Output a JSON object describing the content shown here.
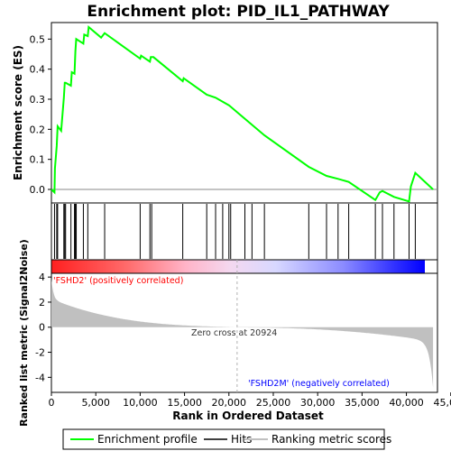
{
  "chart_data": {
    "type": "line",
    "title": "Enrichment plot: PID_IL1_PATHWAY",
    "xlabel": "Rank in Ordered Dataset",
    "xlim": [
      0,
      43500
    ],
    "x_ticks": [
      0,
      5000,
      10000,
      15000,
      20000,
      25000,
      30000,
      35000,
      40000,
      45000
    ],
    "x_tick_labels": [
      "0",
      "5,000",
      "10,000",
      "15,000",
      "20,000",
      "25,000",
      "30,000",
      "35,000",
      "40,000",
      "45,000"
    ],
    "es_panel": {
      "ylabel": "Enrichment score (ES)",
      "ylim": [
        -0.045,
        0.555
      ],
      "y_ticks": [
        0.0,
        0.1,
        0.2,
        0.3,
        0.4,
        0.5
      ],
      "y_tick_labels": [
        "0.0",
        "0.1",
        "0.2",
        "0.3",
        "0.4",
        "0.5"
      ],
      "series": [
        {
          "name": "Enrichment profile",
          "color": "#00ff00",
          "x": [
            0,
            350,
            400,
            600,
            700,
            1100,
            1400,
            1500,
            1600,
            2200,
            2300,
            2600,
            2700,
            2800,
            3600,
            3700,
            4100,
            4200,
            5600,
            6000,
            10000,
            10100,
            11100,
            11200,
            11300,
            11500,
            14800,
            14900,
            17500,
            18500,
            20000,
            24000,
            29000,
            31000,
            32300,
            33500,
            36500,
            37000,
            37300,
            38600,
            40300,
            40500,
            41000,
            43000
          ],
          "y": [
            0.0,
            -0.01,
            0.07,
            0.145,
            0.21,
            0.195,
            0.305,
            0.355,
            0.355,
            0.345,
            0.39,
            0.385,
            0.46,
            0.5,
            0.485,
            0.515,
            0.51,
            0.54,
            0.505,
            0.52,
            0.435,
            0.445,
            0.425,
            0.44,
            0.44,
            0.44,
            0.36,
            0.37,
            0.315,
            0.305,
            0.28,
            0.18,
            0.075,
            0.045,
            0.035,
            0.025,
            -0.035,
            -0.01,
            -0.005,
            -0.025,
            -0.04,
            0.01,
            0.055,
            0.0
          ]
        }
      ]
    },
    "hits_x": [
      350,
      600,
      700,
      1400,
      1500,
      1600,
      2200,
      2600,
      2700,
      2800,
      3600,
      4100,
      6000,
      10000,
      11100,
      11300,
      14800,
      17500,
      18500,
      19300,
      20000,
      20200,
      21800,
      22600,
      24000,
      29000,
      31000,
      32300,
      33500,
      36500,
      37300,
      38600,
      40300,
      41000
    ],
    "ranking_panel": {
      "ylabel": "Ranked list metric (Signal2Noise)",
      "ylim": [
        -5.2,
        4.3
      ],
      "y_ticks": [
        -4,
        -2,
        0,
        2,
        4
      ],
      "y_tick_labels": [
        "-4",
        "-2",
        "0",
        "2",
        "4"
      ],
      "zero_cross": 20924,
      "zero_cross_label": "Zero cross at 20924",
      "positive_label": "'FSHD2' (positively correlated)",
      "negative_label": "'FSHD2M' (negatively correlated)",
      "positive_color": "#ff0000",
      "negative_color": "#0000ff",
      "fill_color": "#c0c0c0"
    },
    "legend": [
      {
        "label": "Enrichment profile",
        "color": "#00ff00"
      },
      {
        "label": "Hits",
        "color": "#000000"
      },
      {
        "label": "Ranking metric scores",
        "color": "#c0c0c0"
      }
    ]
  }
}
